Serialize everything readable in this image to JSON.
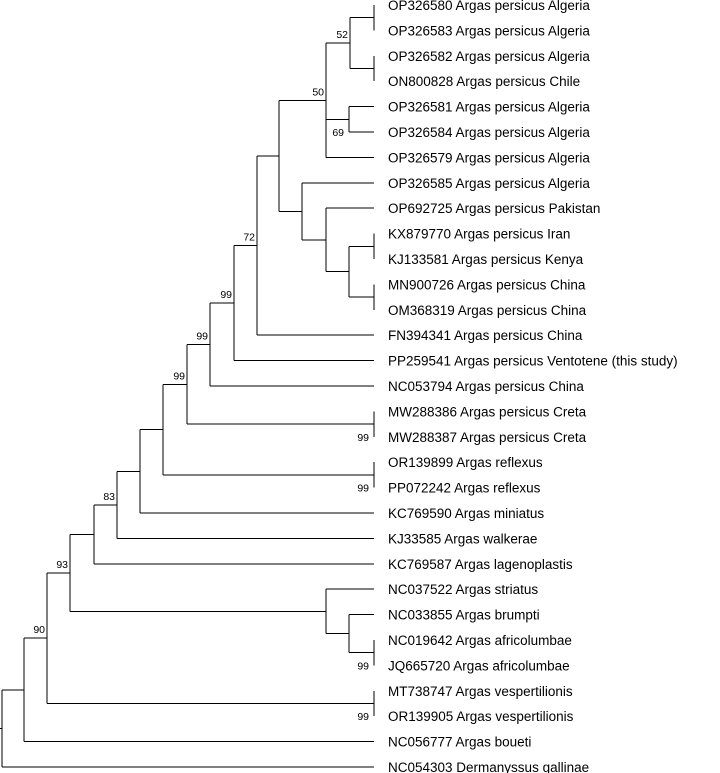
{
  "figure": {
    "type": "phylogenetic-tree",
    "line_color": "#000000",
    "text_color": "#000000",
    "background": "#ffffff"
  },
  "taxa": [
    {
      "accession": "OP326580",
      "name": "Argas persicus Algeria",
      "label": "OP326580 Argas persicus Algeria"
    },
    {
      "accession": "OP326583",
      "name": "Argas persicus Algeria",
      "label": "OP326583 Argas persicus Algeria"
    },
    {
      "accession": "OP326582",
      "name": "Argas persicus Algeria",
      "label": "OP326582 Argas persicus Algeria"
    },
    {
      "accession": "ON800828",
      "name": "Argas persicus Chile",
      "label": "ON800828 Argas persicus Chile"
    },
    {
      "accession": "OP326581",
      "name": "Argas persicus Algeria",
      "label": "OP326581 Argas persicus Algeria"
    },
    {
      "accession": "OP326584",
      "name": "Argas persicus Algeria",
      "label": "OP326584 Argas persicus Algeria"
    },
    {
      "accession": "OP326579",
      "name": "Argas persicus Algeria",
      "label": "OP326579 Argas persicus Algeria"
    },
    {
      "accession": "OP326585",
      "name": "Argas persicus Algeria",
      "label": "OP326585 Argas persicus Algeria"
    },
    {
      "accession": "OP692725",
      "name": "Argas persicus Pakistan",
      "label": "OP692725 Argas persicus Pakistan"
    },
    {
      "accession": "KX879770",
      "name": "Argas persicus Iran",
      "label": "KX879770 Argas persicus Iran"
    },
    {
      "accession": "KJ133581",
      "name": "Argas persicus Kenya",
      "label": "KJ133581 Argas persicus Kenya"
    },
    {
      "accession": "MN900726",
      "name": "Argas persicus China",
      "label": "MN900726 Argas persicus China"
    },
    {
      "accession": "OM368319",
      "name": "Argas persicus China",
      "label": "OM368319 Argas persicus China"
    },
    {
      "accession": "FN394341",
      "name": "Argas persicus China",
      "label": "FN394341 Argas persicus China"
    },
    {
      "accession": "PP259541",
      "name": "Argas persicus Ventotene (this study)",
      "label": "PP259541 Argas persicus Ventotene (this study)"
    },
    {
      "accession": "NC053794",
      "name": "Argas persicus China",
      "label": "NC053794 Argas persicus China"
    },
    {
      "accession": "MW288386",
      "name": "Argas persicus Creta",
      "label": "MW288386 Argas persicus Creta"
    },
    {
      "accession": "MW288387",
      "name": "Argas persicus Creta",
      "label": "MW288387 Argas persicus Creta"
    },
    {
      "accession": "OR139899",
      "name": "Argas reflexus",
      "label": "OR139899 Argas reflexus"
    },
    {
      "accession": "PP072242",
      "name": "Argas reflexus",
      "label": "PP072242 Argas reflexus"
    },
    {
      "accession": "KC769590",
      "name": "Argas miniatus",
      "label": "KC769590 Argas miniatus"
    },
    {
      "accession": "KJ33585",
      "name": "Argas walkerae",
      "label": "KJ33585 Argas walkerae"
    },
    {
      "accession": "KC769587",
      "name": "Argas lagenoplastis",
      "label": "KC769587 Argas lagenoplastis"
    },
    {
      "accession": "NC037522",
      "name": "Argas striatus",
      "label": "NC037522 Argas striatus"
    },
    {
      "accession": "NC033855",
      "name": "Argas brumpti",
      "label": "NC033855 Argas brumpti"
    },
    {
      "accession": "NC019642",
      "name": "Argas africolumbae",
      "label": "NC019642 Argas africolumbae"
    },
    {
      "accession": "JQ665720",
      "name": "Argas africolumbae",
      "label": "JQ665720 Argas africolumbae"
    },
    {
      "accession": "MT738747",
      "name": "Argas vespertilionis",
      "label": "MT738747 Argas vespertilionis"
    },
    {
      "accession": "OR139905",
      "name": "Argas vespertilionis",
      "label": "OR139905 Argas vespertilionis"
    },
    {
      "accession": "NC056777",
      "name": "Argas boueti",
      "label": "NC056777 Argas boueti"
    },
    {
      "accession": "NC054303",
      "name": "Dermanyssus gallinae",
      "label": "NC054303 Dermanyssus gallinae"
    }
  ],
  "clades": [
    {
      "id": "c-580-583",
      "members": [
        "OP326580",
        "OP326583"
      ]
    },
    {
      "id": "c-582-828",
      "members": [
        "OP326582",
        "ON800828"
      ]
    },
    {
      "id": "c-algeria-chile",
      "members": [
        "c-580-583",
        "c-582-828"
      ],
      "support": "52"
    },
    {
      "id": "c-581-584",
      "members": [
        "OP326581",
        "OP326584"
      ],
      "support": "69"
    },
    {
      "id": "c-upper",
      "members": [
        "c-algeria-chile",
        "c-581-584",
        "OP326579"
      ],
      "support": "50"
    },
    {
      "id": "c-iran-kenya",
      "members": [
        "KX879770",
        "KJ133581"
      ]
    },
    {
      "id": "c-china-pair",
      "members": [
        "MN900726",
        "OM368319"
      ]
    },
    {
      "id": "c-iran-kenya-china",
      "members": [
        "c-iran-kenya",
        "c-china-pair"
      ]
    },
    {
      "id": "c-pakistan-group",
      "members": [
        "OP692725",
        "c-iran-kenya-china"
      ]
    },
    {
      "id": "c-585-group",
      "members": [
        "OP326585",
        "c-pakistan-group"
      ]
    },
    {
      "id": "c-persicus-core",
      "members": [
        "c-upper",
        "c-585-group"
      ]
    },
    {
      "id": "c-persicus-fn",
      "members": [
        "c-persicus-core",
        "FN394341"
      ],
      "support": "72"
    },
    {
      "id": "c-persicus-ventotene",
      "members": [
        "c-persicus-fn",
        "PP259541"
      ],
      "support": "99"
    },
    {
      "id": "c-persicus-nc053794",
      "members": [
        "c-persicus-ventotene",
        "NC053794"
      ],
      "support": "99"
    },
    {
      "id": "c-creta",
      "members": [
        "MW288386",
        "MW288387"
      ],
      "support": "99"
    },
    {
      "id": "c-persicus-all",
      "members": [
        "c-persicus-nc053794",
        "c-creta"
      ],
      "support": "99"
    },
    {
      "id": "c-reflexus",
      "members": [
        "OR139899",
        "PP072242"
      ],
      "support": "99"
    },
    {
      "id": "c-persicus-reflexus",
      "members": [
        "c-persicus-all",
        "c-reflexus"
      ]
    },
    {
      "id": "c-with-miniatus",
      "members": [
        "c-persicus-reflexus",
        "KC769590"
      ]
    },
    {
      "id": "c-with-walkerae",
      "members": [
        "c-with-miniatus",
        "KJ33585"
      ],
      "support": "83"
    },
    {
      "id": "c-with-lagenoplastis",
      "members": [
        "c-with-walkerae",
        "KC769587"
      ]
    },
    {
      "id": "c-africolumbae",
      "members": [
        "NC019642",
        "JQ665720"
      ],
      "support": "99"
    },
    {
      "id": "c-brumpti-africolumbae",
      "members": [
        "NC033855",
        "c-africolumbae"
      ]
    },
    {
      "id": "c-striatus-group",
      "members": [
        "NC037522",
        "c-brumpti-africolumbae"
      ]
    },
    {
      "id": "c-argas-main",
      "members": [
        "c-with-lagenoplastis",
        "c-striatus-group"
      ],
      "support": "93"
    },
    {
      "id": "c-vespertilionis",
      "members": [
        "MT738747",
        "OR139905"
      ],
      "support": "99"
    },
    {
      "id": "c-argas-vesp",
      "members": [
        "c-argas-main",
        "c-vespertilionis"
      ],
      "support": "90"
    },
    {
      "id": "c-argas-all",
      "members": [
        "c-argas-vesp",
        "NC056777"
      ]
    },
    {
      "id": "root",
      "members": [
        "c-argas-all",
        "NC054303"
      ]
    }
  ]
}
